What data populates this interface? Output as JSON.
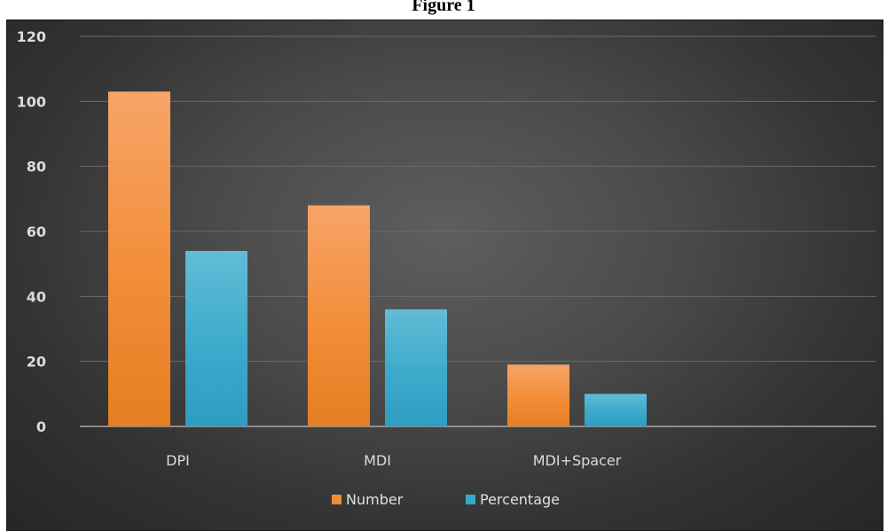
{
  "figure": {
    "title": "Figure 1"
  },
  "chart_data": {
    "type": "bar",
    "categories": [
      "DPI",
      "MDI",
      "MDI+Spacer"
    ],
    "series": [
      {
        "name": "Number",
        "values": [
          103,
          68,
          19
        ],
        "color": "#f08c34"
      },
      {
        "name": "Percentage",
        "values": [
          54,
          36,
          10
        ],
        "color": "#38a8c8"
      }
    ],
    "yticks": [
      0,
      20,
      40,
      60,
      80,
      100,
      120
    ],
    "ylim": [
      0,
      120
    ],
    "grid": true,
    "legend_position": "bottom"
  }
}
